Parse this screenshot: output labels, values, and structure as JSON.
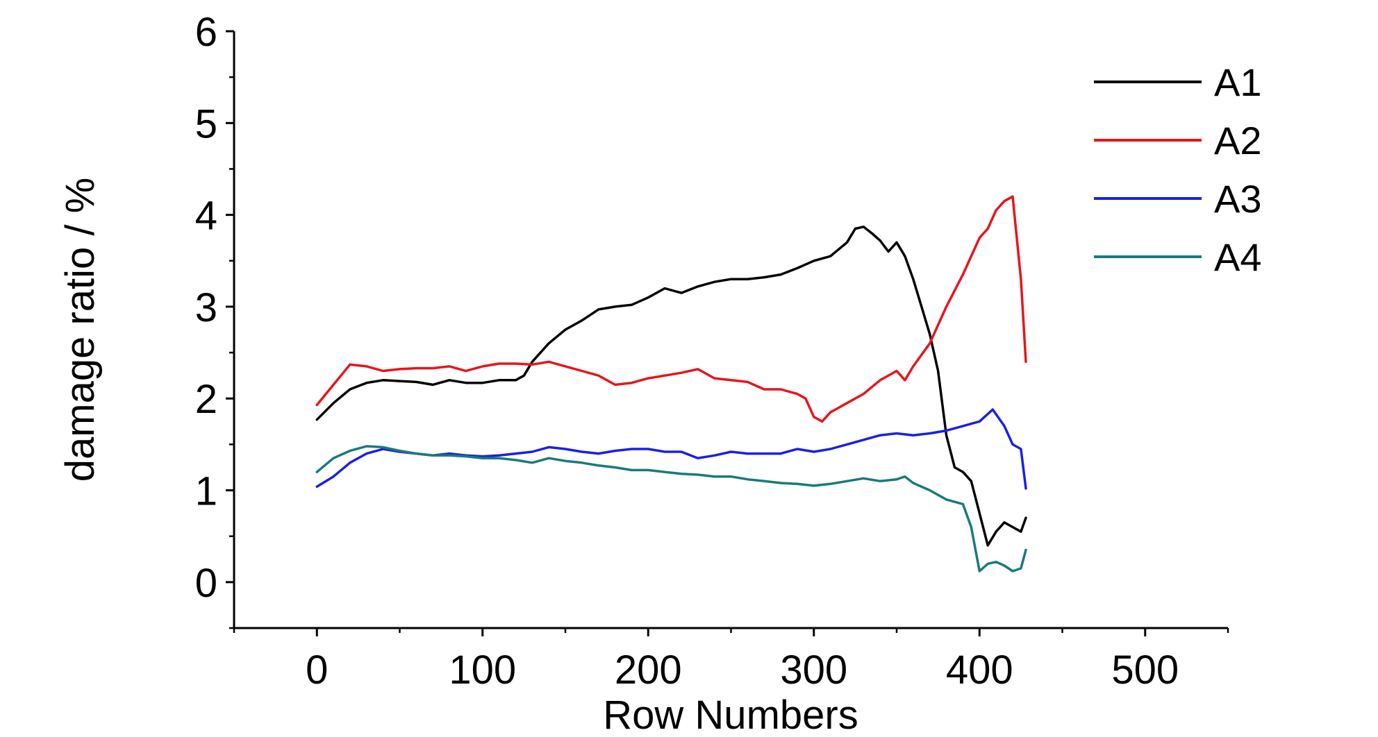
{
  "chart_data": {
    "type": "line",
    "title": "",
    "xlabel": "Row Numbers",
    "ylabel": "damage ratio / %",
    "xlim": [
      -50,
      550
    ],
    "ylim": [
      -0.5,
      6
    ],
    "xticks": [
      0,
      100,
      200,
      300,
      400,
      500
    ],
    "yticks": [
      0,
      1,
      2,
      3,
      4,
      5,
      6
    ],
    "xtick_labels": [
      "0",
      "100",
      "200",
      "300",
      "400",
      "500"
    ],
    "ytick_labels": [
      "0",
      "1",
      "2",
      "3",
      "4",
      "5",
      "6"
    ],
    "grid": false,
    "legend_position": "top-right",
    "series": [
      {
        "name": "A1",
        "color": "#000000",
        "x": [
          0,
          10,
          20,
          30,
          40,
          50,
          60,
          70,
          80,
          90,
          100,
          110,
          120,
          125,
          130,
          140,
          150,
          160,
          170,
          180,
          190,
          200,
          210,
          220,
          230,
          240,
          250,
          260,
          270,
          280,
          290,
          300,
          310,
          320,
          325,
          330,
          335,
          340,
          345,
          350,
          355,
          360,
          365,
          370,
          375,
          380,
          385,
          390,
          395,
          400,
          405,
          410,
          415,
          420,
          425,
          428
        ],
        "y": [
          1.77,
          1.95,
          2.1,
          2.17,
          2.2,
          2.19,
          2.18,
          2.15,
          2.2,
          2.17,
          2.17,
          2.2,
          2.2,
          2.25,
          2.4,
          2.6,
          2.75,
          2.85,
          2.97,
          3.0,
          3.02,
          3.1,
          3.2,
          3.15,
          3.22,
          3.27,
          3.3,
          3.3,
          3.32,
          3.35,
          3.42,
          3.5,
          3.55,
          3.7,
          3.85,
          3.87,
          3.8,
          3.72,
          3.6,
          3.7,
          3.55,
          3.3,
          3.0,
          2.7,
          2.3,
          1.6,
          1.25,
          1.2,
          1.1,
          0.75,
          0.4,
          0.55,
          0.65,
          0.6,
          0.55,
          0.7
        ]
      },
      {
        "name": "A2",
        "color": "#e8141b",
        "x": [
          0,
          10,
          20,
          30,
          40,
          50,
          60,
          70,
          80,
          90,
          100,
          110,
          120,
          130,
          140,
          150,
          160,
          170,
          180,
          190,
          200,
          210,
          220,
          230,
          240,
          250,
          260,
          270,
          280,
          290,
          295,
          300,
          305,
          310,
          320,
          330,
          340,
          350,
          355,
          360,
          370,
          380,
          390,
          400,
          405,
          410,
          415,
          420,
          425,
          428
        ],
        "y": [
          1.93,
          2.15,
          2.37,
          2.35,
          2.3,
          2.32,
          2.33,
          2.33,
          2.35,
          2.3,
          2.35,
          2.38,
          2.38,
          2.37,
          2.4,
          2.35,
          2.3,
          2.25,
          2.15,
          2.17,
          2.22,
          2.25,
          2.28,
          2.32,
          2.22,
          2.2,
          2.18,
          2.1,
          2.1,
          2.05,
          2.0,
          1.8,
          1.75,
          1.85,
          1.95,
          2.05,
          2.2,
          2.3,
          2.2,
          2.35,
          2.6,
          3.0,
          3.35,
          3.75,
          3.85,
          4.05,
          4.15,
          4.2,
          3.3,
          2.4
        ]
      },
      {
        "name": "A3",
        "color": "#1a1fe6",
        "x": [
          0,
          10,
          20,
          30,
          40,
          50,
          60,
          70,
          80,
          90,
          100,
          110,
          120,
          130,
          140,
          150,
          160,
          170,
          180,
          190,
          200,
          210,
          220,
          230,
          240,
          250,
          260,
          270,
          280,
          290,
          300,
          310,
          320,
          330,
          340,
          350,
          360,
          370,
          380,
          390,
          400,
          408,
          415,
          420,
          425,
          428
        ],
        "y": [
          1.04,
          1.15,
          1.3,
          1.4,
          1.45,
          1.42,
          1.4,
          1.38,
          1.4,
          1.38,
          1.37,
          1.38,
          1.4,
          1.42,
          1.47,
          1.45,
          1.42,
          1.4,
          1.43,
          1.45,
          1.45,
          1.42,
          1.42,
          1.35,
          1.38,
          1.42,
          1.4,
          1.4,
          1.4,
          1.45,
          1.42,
          1.45,
          1.5,
          1.55,
          1.6,
          1.62,
          1.6,
          1.62,
          1.65,
          1.7,
          1.75,
          1.88,
          1.7,
          1.5,
          1.45,
          1.02
        ]
      },
      {
        "name": "A4",
        "color": "#1a7a7a",
        "x": [
          0,
          10,
          20,
          30,
          40,
          50,
          60,
          70,
          80,
          90,
          100,
          110,
          120,
          130,
          140,
          150,
          160,
          170,
          180,
          190,
          200,
          210,
          220,
          230,
          240,
          250,
          260,
          270,
          280,
          290,
          300,
          310,
          320,
          330,
          340,
          350,
          355,
          360,
          370,
          380,
          390,
          395,
          400,
          405,
          410,
          415,
          420,
          425,
          428
        ],
        "y": [
          1.2,
          1.35,
          1.43,
          1.48,
          1.47,
          1.43,
          1.4,
          1.38,
          1.38,
          1.37,
          1.35,
          1.35,
          1.33,
          1.3,
          1.35,
          1.32,
          1.3,
          1.27,
          1.25,
          1.22,
          1.22,
          1.2,
          1.18,
          1.17,
          1.15,
          1.15,
          1.12,
          1.1,
          1.08,
          1.07,
          1.05,
          1.07,
          1.1,
          1.13,
          1.1,
          1.12,
          1.15,
          1.08,
          1.0,
          0.9,
          0.85,
          0.6,
          0.12,
          0.2,
          0.22,
          0.18,
          0.12,
          0.15,
          0.35
        ]
      }
    ]
  }
}
